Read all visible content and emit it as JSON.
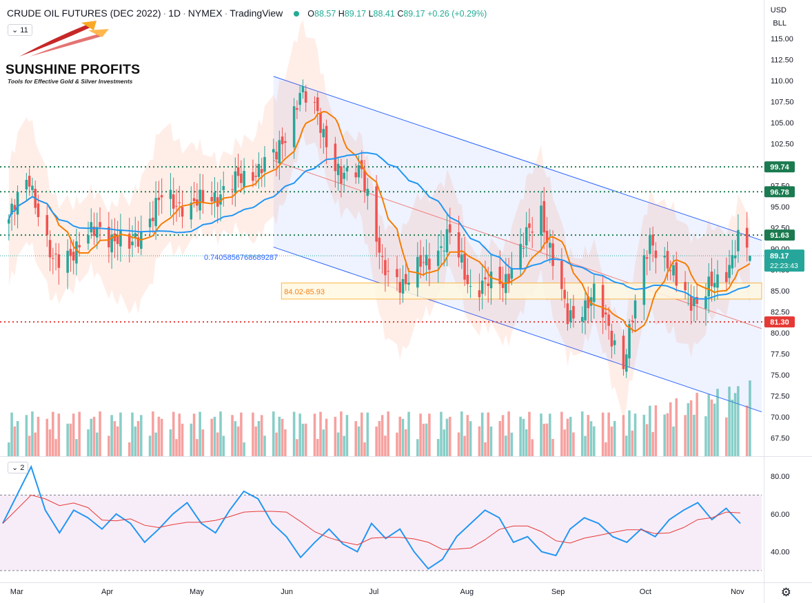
{
  "header": {
    "symbol": "CRUDE OIL FUTURES (DEC 2022)",
    "interval": "1D",
    "exchange": "NYMEX",
    "source": "TradingView",
    "open_label": "O",
    "open": "88.57",
    "high_label": "H",
    "high": "89.17",
    "low_label": "L",
    "low": "88.41",
    "close_label": "C",
    "close": "89.17",
    "change": "+0.26 (+0.29%)"
  },
  "price_pane_toggle": "11",
  "rsi_pane_toggle": "2",
  "currency": "USD",
  "unit": "BLL",
  "logo": {
    "title": "SUNSHINE PROFITS",
    "tagline": "Tools for Effective Gold & Silver Investments"
  },
  "colors": {
    "up": "#26a69a",
    "down": "#ef5350",
    "ma_fast": "#f57c00",
    "ma_slow": "#2196f3",
    "green_level": "#1b7a4f",
    "red_level": "#e53935",
    "rsi": "#2196f3",
    "rsi_ma": "#e53935",
    "rsi_band": "#f3e5f5"
  },
  "annotations": {
    "ratio_text": "0.7405856768689287",
    "zone_text": "84.02-85.93",
    "last_price": "89.17",
    "countdown": "22:23:43"
  },
  "chart_data": [
    {
      "type": "candlestick",
      "ylim": [
        65.5,
        116.5
      ],
      "y_ticks": [
        "115.00",
        "112.50",
        "110.00",
        "107.50",
        "105.00",
        "102.50",
        "100.00",
        "97.50",
        "95.00",
        "92.50",
        "90.00",
        "87.50",
        "85.00",
        "82.50",
        "80.00",
        "77.50",
        "75.00",
        "72.50",
        "70.00",
        "67.50"
      ],
      "x_ticks": [
        "Mar",
        "Apr",
        "May",
        "Jun",
        "Jul",
        "Aug",
        "Sep",
        "Oct",
        "Nov"
      ],
      "levels": [
        {
          "value": 99.74,
          "label": "99.74",
          "color": "green"
        },
        {
          "value": 96.78,
          "label": "96.78",
          "color": "green"
        },
        {
          "value": 91.63,
          "label": "91.63",
          "color": "green"
        },
        {
          "value": 81.3,
          "label": "81.30",
          "color": "red"
        }
      ],
      "key_points": [
        {
          "date": "2022-03-01",
          "close": 93.5
        },
        {
          "date": "2022-03-08",
          "close": 98.5
        },
        {
          "date": "2022-03-16",
          "close": 88.0
        },
        {
          "date": "2022-04-01",
          "close": 92.5
        },
        {
          "date": "2022-04-11",
          "close": 90.0
        },
        {
          "date": "2022-04-22",
          "close": 96.0
        },
        {
          "date": "2022-05-02",
          "close": 95.0
        },
        {
          "date": "2022-05-11",
          "close": 96.5
        },
        {
          "date": "2022-05-31",
          "close": 101.0
        },
        {
          "date": "2022-06-08",
          "close": 108.5
        },
        {
          "date": "2022-06-14",
          "close": 106.0
        },
        {
          "date": "2022-06-22",
          "close": 98.0
        },
        {
          "date": "2022-06-29",
          "close": 100.0
        },
        {
          "date": "2022-07-06",
          "close": 87.5
        },
        {
          "date": "2022-07-14",
          "close": 86.0
        },
        {
          "date": "2022-07-29",
          "close": 91.5
        },
        {
          "date": "2022-08-05",
          "close": 85.5
        },
        {
          "date": "2022-08-16",
          "close": 86.0
        },
        {
          "date": "2022-08-29",
          "close": 94.5
        },
        {
          "date": "2022-09-07",
          "close": 81.5
        },
        {
          "date": "2022-09-16",
          "close": 84.5
        },
        {
          "date": "2022-09-26",
          "close": 76.5
        },
        {
          "date": "2022-10-05",
          "close": 91.5
        },
        {
          "date": "2022-10-13",
          "close": 86.5
        },
        {
          "date": "2022-10-21",
          "close": 83.5
        },
        {
          "date": "2022-10-31",
          "close": 87.5
        },
        {
          "date": "2022-11-04",
          "close": 91.0
        },
        {
          "date": "2022-11-08",
          "close": 89.17
        }
      ]
    },
    {
      "type": "line",
      "name": "RSI",
      "ylim": [
        25,
        90
      ],
      "y_ticks": [
        "80.00",
        "60.00",
        "40.00"
      ],
      "bands": [
        70,
        30
      ],
      "values": [
        55,
        70,
        85,
        62,
        50,
        62,
        58,
        52,
        60,
        55,
        45,
        52,
        60,
        66,
        55,
        50,
        62,
        72,
        68,
        55,
        48,
        37,
        45,
        52,
        44,
        40,
        55,
        47,
        52,
        40,
        31,
        36,
        48,
        55,
        62,
        58,
        45,
        48,
        40,
        38,
        52,
        58,
        55,
        48,
        45,
        52,
        48,
        57,
        62,
        66,
        57,
        63,
        55
      ]
    }
  ]
}
